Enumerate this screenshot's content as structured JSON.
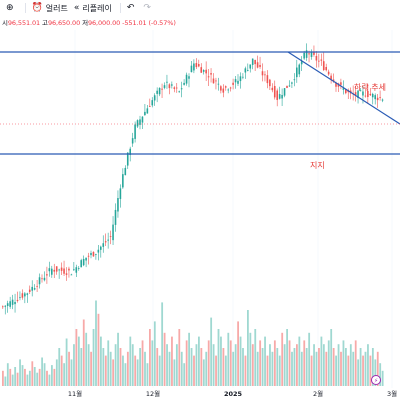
{
  "toolbar": {
    "items": [
      {
        "icon": "plus-icon",
        "label": ""
      },
      {
        "icon": "alert-clock-icon",
        "label": "얼러트"
      },
      {
        "icon": "replay-rewind-icon",
        "label": "리플레이"
      },
      {
        "icon": "undo-icon",
        "label": ""
      },
      {
        "icon": "redo-icon",
        "label": ""
      }
    ]
  },
  "ohlc": {
    "open_label": "시",
    "open": "96,551.01",
    "high_label": "고",
    "high": "96,650.00",
    "low_label": "저",
    "low": "96,000.00",
    "change": "-551.01 (-0.57%)"
  },
  "colors": {
    "up": "#26a69a",
    "down": "#ef5350",
    "up_volume": "#9fd8d1",
    "down_volume": "#f7a9a8",
    "trendline": "#2a5bb5",
    "annotation": "#e53935",
    "price_line": "#f23645"
  },
  "annotations": {
    "downtrend": "하락 추세",
    "support": "지지"
  },
  "chart_data": {
    "type": "candlestick",
    "x_ticks": [
      "11월",
      "12월",
      "2025",
      "2월",
      "3월"
    ],
    "last_price_line": 96000,
    "candles_generated_from_trend": true,
    "anchors": [
      {
        "i": 0,
        "p": 60000
      },
      {
        "i": 10,
        "p": 62500
      },
      {
        "i": 20,
        "p": 66500
      },
      {
        "i": 28,
        "p": 66000
      },
      {
        "i": 34,
        "p": 68500
      },
      {
        "i": 38,
        "p": 69500
      },
      {
        "i": 44,
        "p": 72000
      },
      {
        "i": 48,
        "p": 81000
      },
      {
        "i": 54,
        "p": 91000
      },
      {
        "i": 60,
        "p": 95000
      },
      {
        "i": 66,
        "p": 98500
      },
      {
        "i": 72,
        "p": 97000
      },
      {
        "i": 78,
        "p": 102000
      },
      {
        "i": 84,
        "p": 100000
      },
      {
        "i": 90,
        "p": 97500
      },
      {
        "i": 96,
        "p": 99000
      },
      {
        "i": 102,
        "p": 102500
      },
      {
        "i": 108,
        "p": 99000
      },
      {
        "i": 112,
        "p": 96000
      },
      {
        "i": 118,
        "p": 99000
      },
      {
        "i": 124,
        "p": 104000
      },
      {
        "i": 130,
        "p": 102000
      },
      {
        "i": 136,
        "p": 98500
      },
      {
        "i": 142,
        "p": 96500
      },
      {
        "i": 148,
        "p": 96800
      },
      {
        "i": 154,
        "p": 96000
      }
    ],
    "volume_relative": [
      8,
      5,
      12,
      9,
      6,
      10,
      7,
      14,
      11,
      9,
      6,
      8,
      13,
      10,
      7,
      9,
      15,
      12,
      8,
      6,
      11,
      9,
      14,
      20,
      16,
      12,
      25,
      18,
      14,
      22,
      30,
      26,
      20,
      35,
      28,
      22,
      18,
      30,
      45,
      38,
      26,
      20,
      16,
      24,
      18,
      14,
      22,
      28,
      20,
      16,
      12,
      18,
      26,
      22,
      16,
      14,
      20,
      24,
      18,
      12,
      30,
      24,
      34,
      20,
      16,
      44,
      28,
      22,
      18,
      26,
      14,
      22,
      30,
      18,
      12,
      24,
      28,
      20,
      16,
      22,
      26,
      20,
      14,
      18,
      24,
      36,
      22,
      16,
      30,
      26,
      20,
      16,
      28,
      24,
      18,
      22,
      34,
      26,
      20,
      16,
      40,
      28,
      22,
      30,
      18,
      24,
      20,
      26,
      16,
      22,
      18,
      24,
      20,
      16,
      28,
      22,
      30,
      24,
      18,
      20,
      22,
      26,
      18,
      24,
      20,
      28,
      16,
      22,
      18,
      20,
      26,
      22,
      18,
      24,
      30,
      20,
      16,
      22,
      18,
      24,
      20,
      16,
      22,
      18,
      24,
      14,
      20,
      16,
      18,
      22,
      16,
      20,
      14,
      18,
      12,
      8
    ]
  }
}
